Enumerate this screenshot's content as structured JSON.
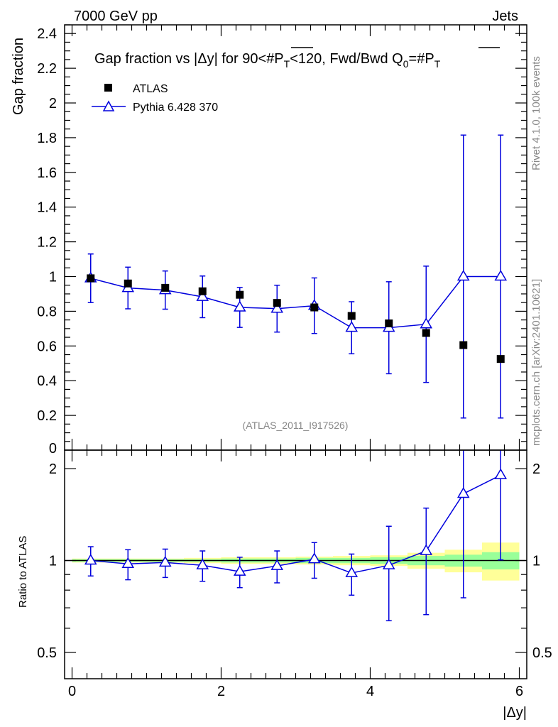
{
  "header": {
    "left": "7000 GeV pp",
    "right": "Jets"
  },
  "side_labels": {
    "rivet": "Rivet 4.1.0,  100k events",
    "mcplots": "mcplots.cern.ch [arXiv:2401.10621]"
  },
  "chart_data": [
    {
      "type": "scatter",
      "title_parts": [
        "Gap fraction vs |Δy| for 90<#P",
        "T",
        "<120, Fwd/Bwd Q",
        "0",
        "=#P",
        "T"
      ],
      "ylabel": "Gap fraction",
      "watermark": "(ATLAS_2011_I917526)",
      "xlim": [
        -0.1,
        6.1
      ],
      "ylim": [
        0,
        2.45
      ],
      "yticks": [
        0.2,
        0.4,
        0.6,
        0.8,
        1,
        1.2,
        1.4,
        1.6,
        1.8,
        2,
        2.2,
        2.4
      ],
      "ytick_labels": [
        "0.2",
        "0.4",
        "0.6",
        "0.8",
        "1",
        "1.2",
        "1.4",
        "1.6",
        "1.8",
        "2",
        "2.2",
        "2.4"
      ],
      "ybottom_label": "0",
      "legend": [
        "ATLAS",
        "Pythia 6.428 370"
      ],
      "x": [
        0.25,
        0.75,
        1.25,
        1.75,
        2.25,
        2.75,
        3.25,
        3.75,
        4.25,
        4.75,
        5.25,
        5.75
      ],
      "series": [
        {
          "name": "ATLAS",
          "values": [
            0.99,
            0.96,
            0.935,
            0.915,
            0.895,
            0.848,
            0.822,
            0.773,
            0.73,
            0.675,
            0.605,
            0.525
          ]
        },
        {
          "name": "Pythia 6.428 370",
          "values": [
            0.99,
            0.934,
            0.922,
            0.883,
            0.822,
            0.815,
            0.832,
            0.705,
            0.705,
            0.725,
            1.0,
            1.0
          ],
          "err_low": [
            0.14,
            0.12,
            0.11,
            0.12,
            0.115,
            0.135,
            0.16,
            0.15,
            0.265,
            0.335,
            0.815,
            0.815
          ],
          "err_high": [
            0.14,
            0.12,
            0.11,
            0.12,
            0.115,
            0.135,
            0.16,
            0.15,
            0.265,
            0.335,
            0.815,
            0.815
          ]
        }
      ],
      "color": "#0000dd"
    },
    {
      "type": "scatter",
      "ylabel": "Ratio to ATLAS",
      "xlabel": "|Δy|",
      "xlim": [
        -0.1,
        6.1
      ],
      "ylim": [
        0.41,
        2.3
      ],
      "log_y": true,
      "yticks": [
        0.5,
        1,
        2
      ],
      "ytick_labels": [
        "0.5",
        "1",
        "2"
      ],
      "xticks": [
        0,
        2,
        4,
        6
      ],
      "xtick_labels": [
        "0",
        "2",
        "4",
        "6"
      ],
      "x": [
        0.25,
        0.75,
        1.25,
        1.75,
        2.25,
        2.75,
        3.25,
        3.75,
        4.25,
        4.75,
        5.25,
        5.75
      ],
      "series": [
        {
          "name": "Pythia 6.428 370 / ATLAS",
          "values": [
            1.0,
            0.975,
            0.985,
            0.965,
            0.92,
            0.96,
            1.01,
            0.91,
            0.965,
            1.075,
            1.655,
            1.905
          ],
          "err_low": [
            0.11,
            0.11,
            0.105,
            0.11,
            0.105,
            0.115,
            0.135,
            0.14,
            0.33,
            0.41,
            0.9,
            0.9
          ],
          "err_high": [
            0.11,
            0.11,
            0.105,
            0.11,
            0.105,
            0.115,
            0.135,
            0.14,
            0.33,
            0.41,
            0.9,
            0.9
          ]
        }
      ],
      "bands": {
        "edges": [
          0,
          0.5,
          1,
          1.5,
          2,
          2.5,
          3,
          3.5,
          4,
          4.5,
          5,
          5.5,
          6
        ],
        "inner_low": [
          0.99,
          0.99,
          0.99,
          0.99,
          0.985,
          0.985,
          0.98,
          0.98,
          0.975,
          0.965,
          0.955,
          0.935
        ],
        "inner_high": [
          1.01,
          1.01,
          1.01,
          1.01,
          1.015,
          1.015,
          1.02,
          1.02,
          1.025,
          1.035,
          1.045,
          1.065
        ],
        "outer_low": [
          0.985,
          0.985,
          0.985,
          0.98,
          0.975,
          0.975,
          0.97,
          0.965,
          0.96,
          0.94,
          0.915,
          0.86
        ],
        "outer_high": [
          1.015,
          1.015,
          1.015,
          1.02,
          1.025,
          1.025,
          1.03,
          1.035,
          1.04,
          1.06,
          1.085,
          1.145
        ],
        "inner_color": "#99ff99",
        "outer_color": "#ffff99"
      }
    }
  ]
}
